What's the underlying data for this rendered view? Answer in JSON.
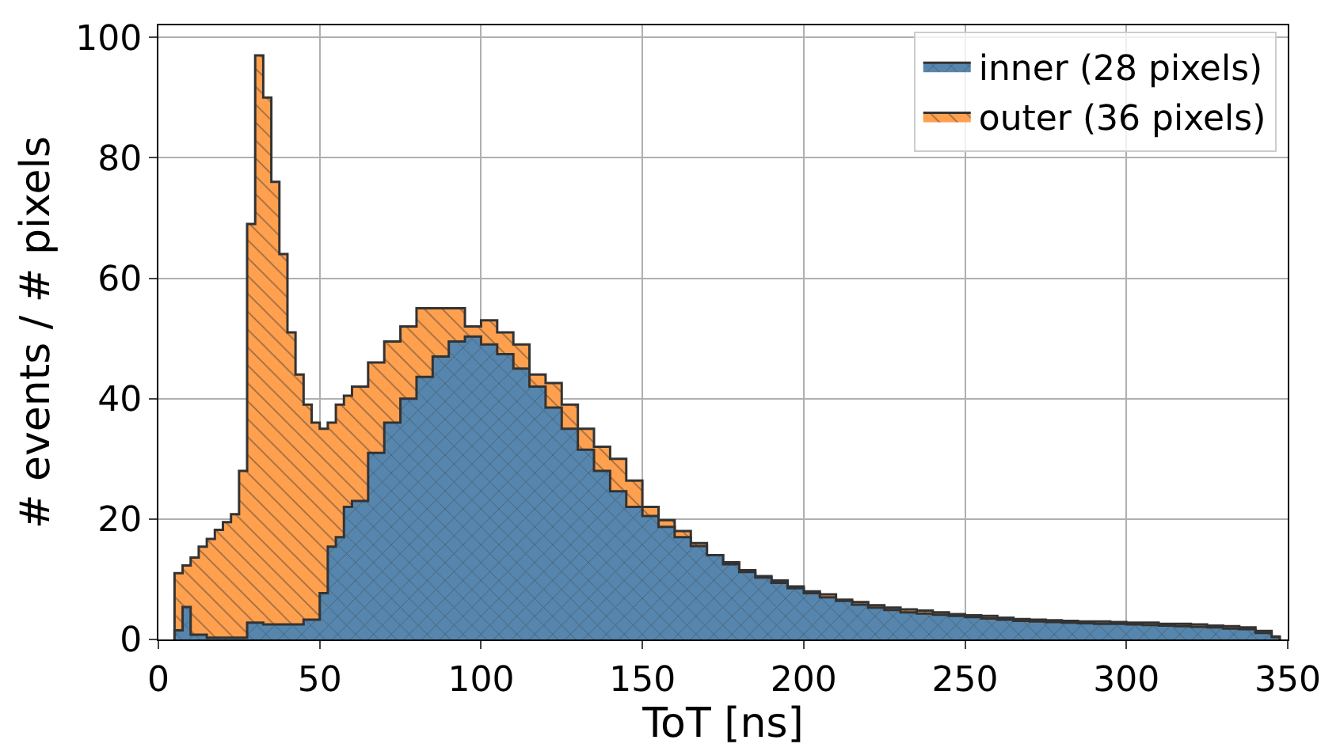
{
  "chart_data": {
    "type": "histogram",
    "xlabel": "ToT [ns]",
    "ylabel": "# events / # pixels",
    "bins": [
      5,
      7.5,
      10,
      12.5,
      15,
      17.5,
      20,
      22.5,
      25,
      27.5,
      30,
      32.5,
      35,
      37.5,
      40,
      42.5,
      45,
      47.5,
      50,
      52.5,
      55,
      57.5,
      60,
      65,
      70,
      75,
      80,
      85,
      90,
      95,
      100,
      105,
      110,
      115,
      120,
      125,
      130,
      135,
      140,
      145,
      150,
      155,
      160,
      165,
      170,
      175,
      180,
      185,
      190,
      195,
      200,
      205,
      210,
      215,
      220,
      225,
      230,
      235,
      240,
      245,
      250,
      255,
      260,
      265,
      270,
      275,
      280,
      285,
      290,
      295,
      300,
      305,
      310,
      315,
      320,
      325,
      330,
      335,
      340,
      345,
      347.5
    ],
    "series": [
      {
        "name": "outer (36 pixels)",
        "color": "#ffa04f",
        "values": [
          11,
          12.3,
          13.6,
          15.4,
          16.7,
          18.2,
          19.5,
          20.8,
          28,
          69,
          97,
          90,
          76,
          64,
          51,
          44,
          39,
          36,
          35,
          36,
          39,
          40.5,
          42,
          46,
          49.5,
          52,
          55,
          55,
          55,
          52,
          53,
          51,
          49,
          44,
          42.6,
          39,
          35,
          32,
          30,
          26.4,
          22,
          19.8,
          18,
          16,
          14,
          12.8,
          11.5,
          10.5,
          9.8,
          8.8,
          8,
          7.5,
          6.6,
          6.2,
          5.7,
          5.3,
          5,
          4.8,
          4.5,
          4.2,
          4,
          3.9,
          3.6,
          3.4,
          3.3,
          3.2,
          3.1,
          3,
          3,
          2.9,
          2.8,
          2.8,
          2.6,
          2.6,
          2.5,
          2.3,
          2.2,
          2.0,
          1.4,
          0.5
        ]
      },
      {
        "name": "inner (28 pixels)",
        "color": "#5686ad",
        "values": [
          1.5,
          5.4,
          0.8,
          0.8,
          0.3,
          0.3,
          0.3,
          0.3,
          0.3,
          2.8,
          2.8,
          2.5,
          2.5,
          2.5,
          2.5,
          2.5,
          3.3,
          3.3,
          7.7,
          15.4,
          17,
          22,
          23,
          31,
          36,
          40,
          43.6,
          47,
          49.5,
          50.3,
          49,
          47.4,
          45,
          42,
          38.5,
          35,
          31.5,
          28,
          24.6,
          22,
          20.5,
          18.7,
          17,
          15.5,
          14,
          12.5,
          11.2,
          10.3,
          9.4,
          8.5,
          7.7,
          7,
          6.4,
          5.8,
          5.3,
          4.9,
          4.5,
          4.3,
          4.1,
          3.9,
          3.7,
          3.5,
          3.3,
          3.1,
          3,
          2.9,
          2.8,
          2.7,
          2.6,
          2.6,
          2.5,
          2.4,
          2.3,
          2.2,
          2.1,
          2,
          1.8,
          1.7,
          1.1,
          0.4
        ]
      }
    ],
    "xlim": [
      0,
      350
    ],
    "xticks": [
      0,
      50,
      100,
      150,
      200,
      250,
      300,
      350
    ],
    "ylim": [
      0,
      102
    ],
    "yticks": [
      0,
      20,
      40,
      60,
      80,
      100
    ],
    "grid": true,
    "legend": "top right"
  }
}
